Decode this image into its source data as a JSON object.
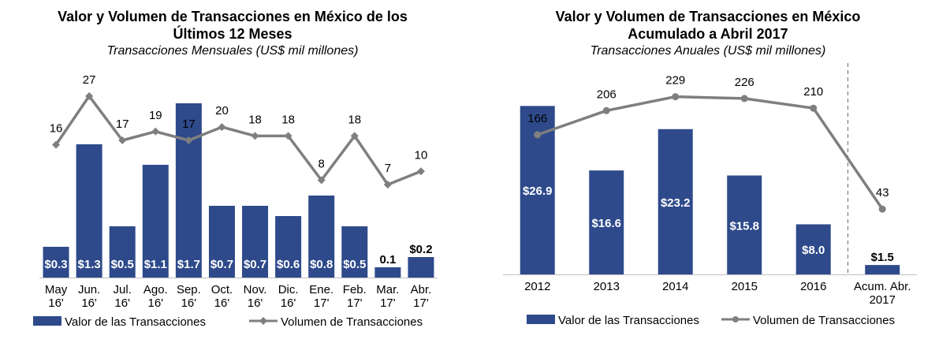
{
  "colors": {
    "bar": "#2E4A8B",
    "line": "#7F7F7F",
    "divider": "#7F7F7F"
  },
  "chart_data": [
    {
      "type": "bar",
      "title_line1": "Valor y Volumen de Transacciones en México de los",
      "title_line2": "Últimos 12 Meses",
      "subtitle": "Transacciones Mensuales (US$ mil millones)",
      "categories": [
        [
          "May",
          "16'"
        ],
        [
          "Jun.",
          "16'"
        ],
        [
          "Jul.",
          "16'"
        ],
        [
          "Ago.",
          "16'"
        ],
        [
          "Sep.",
          "16'"
        ],
        [
          "Oct.",
          "16'"
        ],
        [
          "Nov.",
          "16'"
        ],
        [
          "Dic.",
          "16'"
        ],
        [
          "Ene.",
          "17'"
        ],
        [
          "Feb.",
          "17'"
        ],
        [
          "Mar.",
          "17'"
        ],
        [
          "Abr.",
          "17'"
        ]
      ],
      "series": [
        {
          "name": "Valor de las Transacciones",
          "type": "bar",
          "values": [
            0.3,
            1.3,
            0.5,
            1.1,
            1.7,
            0.7,
            0.7,
            0.6,
            0.8,
            0.5,
            0.1,
            0.2
          ],
          "labels": [
            "$0.3",
            "$1.3",
            "$0.5",
            "$1.1",
            "$1.7",
            "$0.7",
            "$0.7",
            "$0.6",
            "$0.8",
            "$0.5",
            "0.1",
            "$0.2"
          ]
        },
        {
          "name": "Volumen de Transacciones",
          "type": "line",
          "values": [
            16,
            27,
            17,
            19,
            17,
            20,
            18,
            18,
            8,
            18,
            7,
            10
          ]
        }
      ],
      "bar_ylim": [
        0,
        1.9
      ],
      "line_ylim": [
        -14,
        30
      ],
      "legend_position": "bottom"
    },
    {
      "type": "bar",
      "title_line1": "Valor y Volumen de Transacciones en México",
      "title_line2": "Acumulado a Abril 2017",
      "subtitle": "Transacciones Anuales (US$ mil millones)",
      "categories": [
        [
          "2012"
        ],
        [
          "2013"
        ],
        [
          "2014"
        ],
        [
          "2015"
        ],
        [
          "2016"
        ],
        [
          "Acum. Abr.",
          "2017"
        ]
      ],
      "series": [
        {
          "name": "Valor de las Transacciones",
          "type": "bar",
          "values": [
            26.9,
            16.6,
            23.2,
            15.8,
            8.0,
            1.5
          ],
          "labels": [
            "$26.9",
            "$16.6",
            "$23.2",
            "$15.8",
            "$8.0",
            "$1.5"
          ]
        },
        {
          "name": "Volumen de Transacciones",
          "type": "line",
          "values": [
            166,
            206,
            229,
            226,
            210,
            43
          ]
        }
      ],
      "bar_ylim": [
        0,
        30.6
      ],
      "line_ylim": [
        -65,
        252
      ],
      "divider_before_last": true,
      "legend_position": "bottom"
    }
  ]
}
